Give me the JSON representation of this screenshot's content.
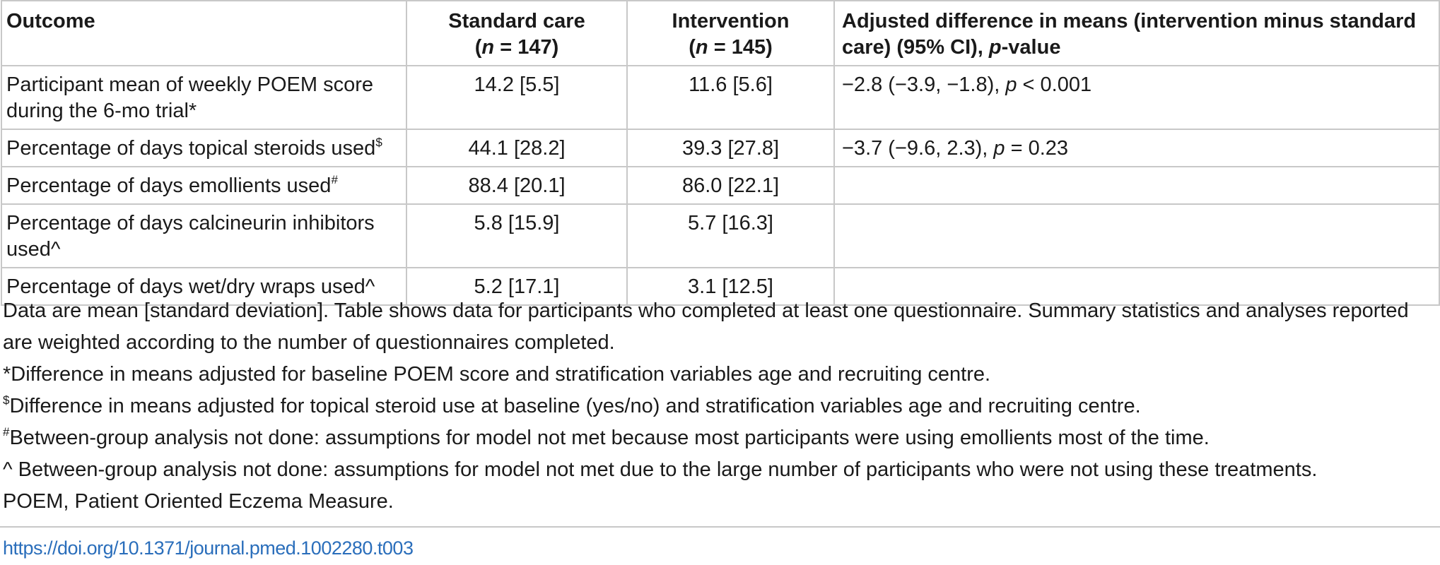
{
  "table": {
    "headers": {
      "outcome": "Outcome",
      "standard_label": "Standard care",
      "standard_n_prefix": "(",
      "standard_n_var": "n",
      "standard_n_value": " = 147)",
      "intervention_label": "Intervention",
      "intervention_n_prefix": "(",
      "intervention_n_var": "n",
      "intervention_n_value": " = 145)",
      "diff_text": "Adjusted difference in means (intervention minus standard care) (95% CI), ",
      "diff_p": "p",
      "diff_suffix": "-value"
    },
    "rows": [
      {
        "outcome": "Participant mean of weekly POEM score during the 6-mo trial*",
        "footnote": "",
        "standard": "14.2 [5.5]",
        "intervention": "11.6 [5.6]",
        "diff_prefix": "−2.8 (−3.9, −1.8), ",
        "diff_p": "p",
        "diff_suffix": " < 0.001"
      },
      {
        "outcome": "Percentage of days topical steroids used",
        "footnote": "$",
        "standard": "44.1 [28.2]",
        "intervention": "39.3 [27.8]",
        "diff_prefix": "−3.7 (−9.6, 2.3), ",
        "diff_p": "p",
        "diff_suffix": " = 0.23"
      },
      {
        "outcome": "Percentage of days emollients used",
        "footnote": "#",
        "standard": "88.4 [20.1]",
        "intervention": "86.0 [22.1]",
        "diff_prefix": "",
        "diff_p": "",
        "diff_suffix": ""
      },
      {
        "outcome": "Percentage of days calcineurin inhibitors used^",
        "footnote": "",
        "standard": "5.8 [15.9]",
        "intervention": "5.7 [16.3]",
        "diff_prefix": "",
        "diff_p": "",
        "diff_suffix": ""
      },
      {
        "outcome": "Percentage of days wet/dry wraps used^",
        "footnote": "",
        "standard": "5.2 [17.1]",
        "intervention": "3.1 [12.5]",
        "diff_prefix": "",
        "diff_p": "",
        "diff_suffix": ""
      }
    ]
  },
  "notes": {
    "summary": "Data are mean [standard deviation]. Table shows data for participants who completed at least one questionnaire. Summary statistics and analyses reported are weighted according to the number of questionnaires completed.",
    "star": "*Difference in means adjusted for baseline POEM score and stratification variables age and recruiting centre.",
    "dollar_mark": "$",
    "dollar": "Difference in means adjusted for topical steroid use at baseline (yes/no) and stratification variables age and recruiting centre.",
    "hash_mark": "#",
    "hash": "Between-group analysis not done: assumptions for model not met because most participants were using emollients most of the time.",
    "caret": "^ Between-group analysis not done: assumptions for model not met due to the large number of participants who were not using these treatments.",
    "abbrev": "POEM, Patient Oriented Eczema Measure."
  },
  "doi": "https://doi.org/10.1371/journal.pmed.1002280.t003",
  "colors": {
    "link": "#2a6ebb",
    "rule": "#c8c8c8",
    "text": "#1a1a1a"
  }
}
